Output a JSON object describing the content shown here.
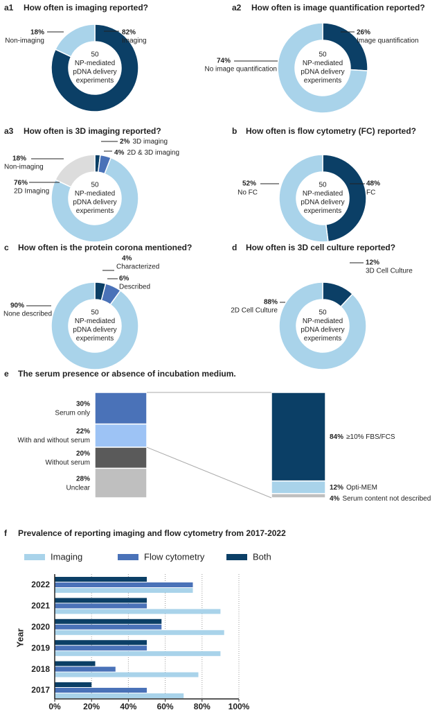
{
  "chart_data": [
    {
      "type": "donut",
      "panel": "a1",
      "title": "How often is imaging reported?",
      "center_label": [
        "50",
        "NP-mediated",
        "pDNA delivery",
        "experiments"
      ],
      "categories": [
        "Imaging",
        "Non-imaging"
      ],
      "values": [
        82,
        18
      ],
      "value_labels": [
        "82%",
        "18%"
      ],
      "colors": [
        "#0b3f66",
        "#a9d3ea"
      ]
    },
    {
      "type": "donut",
      "panel": "a2",
      "title": "How often is image quantification reported?",
      "center_label": [
        "50",
        "NP-mediated",
        "pDNA delivery",
        "experiments"
      ],
      "categories": [
        "Image quantification",
        "No image quantification"
      ],
      "values": [
        26,
        74
      ],
      "value_labels": [
        "26%",
        "74%"
      ],
      "colors": [
        "#0b3f66",
        "#a9d3ea"
      ]
    },
    {
      "type": "donut",
      "panel": "a3",
      "title": "How often is 3D imaging reported?",
      "center_label": [
        "50",
        "NP-mediated",
        "pDNA delivery",
        "experiments"
      ],
      "categories": [
        "3D imaging",
        "2D & 3D imaging",
        "2D Imaging",
        "Non-imaging"
      ],
      "values": [
        2,
        4,
        76,
        18
      ],
      "value_labels": [
        "2%",
        "4%",
        "76%",
        "18%"
      ],
      "colors": [
        "#0b3f66",
        "#4a72b8",
        "#a9d3ea",
        "#dcdcdc"
      ]
    },
    {
      "type": "donut",
      "panel": "b",
      "title": "How often is flow cytometry (FC) reported?",
      "center_label": [
        "50",
        "NP-mediated",
        "pDNA delivery",
        "experiments"
      ],
      "categories": [
        "FC",
        "No FC"
      ],
      "values": [
        48,
        52
      ],
      "value_labels": [
        "48%",
        "52%"
      ],
      "colors": [
        "#0b3f66",
        "#a9d3ea"
      ]
    },
    {
      "type": "donut",
      "panel": "c",
      "title": "How often is the protein corona mentioned?",
      "center_label": [
        "50",
        "NP-mediated",
        "pDNA delivery",
        "experiments"
      ],
      "categories": [
        "Characterized",
        "Described",
        "None described"
      ],
      "values": [
        4,
        6,
        90
      ],
      "value_labels": [
        "4%",
        "6%",
        "90%"
      ],
      "colors": [
        "#0b3f66",
        "#4a72b8",
        "#a9d3ea"
      ]
    },
    {
      "type": "donut",
      "panel": "d",
      "title": "How often is 3D cell culture reported?",
      "center_label": [
        "50",
        "NP-mediated",
        "pDNA delivery",
        "experiments"
      ],
      "categories": [
        "3D Cell Culture",
        "2D Cell Culture"
      ],
      "values": [
        12,
        88
      ],
      "value_labels": [
        "12%",
        "88%"
      ],
      "colors": [
        "#0b3f66",
        "#a9d3ea"
      ]
    },
    {
      "type": "stacked-bar",
      "panel": "e",
      "title": "The serum presence or absence of incubation medium.",
      "bars": [
        {
          "categories": [
            "Serum only",
            "With and without serum",
            "Without serum",
            "Unclear"
          ],
          "values": [
            30,
            22,
            20,
            28
          ],
          "value_labels": [
            "30%",
            "22%",
            "20%",
            "28%"
          ],
          "colors": [
            "#4a72b8",
            "#9dc3f5",
            "#5a5a5a",
            "#bfbfbf"
          ]
        },
        {
          "categories": [
            "≥10% FBS/FCS",
            "Opti-MEM",
            "Serum content not described"
          ],
          "values": [
            84,
            12,
            4
          ],
          "value_labels": [
            "84%",
            "12%",
            "4%"
          ],
          "colors": [
            "#0b3f66",
            "#a9d3ea",
            "#bfbfbf"
          ]
        }
      ]
    },
    {
      "type": "hbar",
      "panel": "f",
      "title": "Prevalence of reporting imaging and flow cytometry from 2017-2022",
      "ylabel": "Year",
      "categories": [
        "2022",
        "2021",
        "2020",
        "2019",
        "2018",
        "2017"
      ],
      "series": [
        {
          "name": "Imaging",
          "color": "#a9d3ea",
          "values": [
            75,
            90,
            92,
            90,
            78,
            70
          ]
        },
        {
          "name": "Flow cytometry",
          "color": "#4a72b8",
          "values": [
            75,
            50,
            58,
            50,
            33,
            50
          ]
        },
        {
          "name": "Both",
          "color": "#0b3f66",
          "values": [
            50,
            50,
            58,
            50,
            22,
            20
          ]
        }
      ],
      "xlim": [
        0,
        100
      ],
      "xticks": [
        {
          "value": 0,
          "label": "0%"
        },
        {
          "value": 20,
          "label": "20%"
        },
        {
          "value": 40,
          "label": "40%"
        },
        {
          "value": 60,
          "label": "60%"
        },
        {
          "value": 80,
          "label": "80%"
        },
        {
          "value": 100,
          "label": "100%"
        }
      ],
      "grid": true
    }
  ]
}
